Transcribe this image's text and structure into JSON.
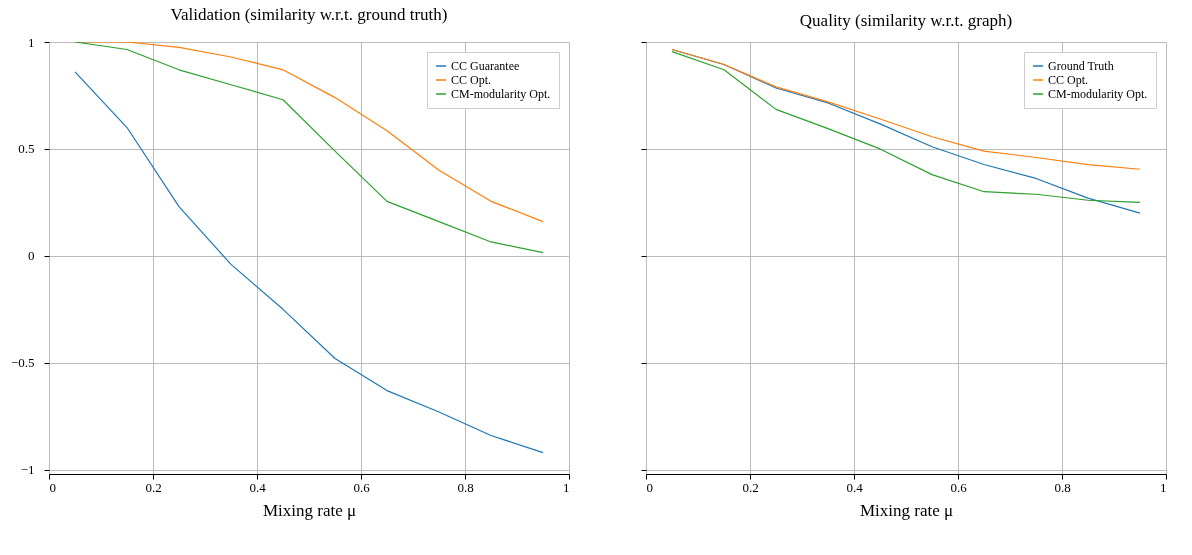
{
  "chart_data": [
    {
      "type": "line",
      "title": "Validation (similarity w.r.t. ground truth)",
      "xlabel": "Mixing rate μ",
      "x": [
        0.05,
        0.15,
        0.25,
        0.35,
        0.45,
        0.55,
        0.65,
        0.75,
        0.85,
        0.95
      ],
      "xlim": [
        0,
        1
      ],
      "xticks": [
        0,
        0.2,
        0.4,
        0.6,
        0.8,
        1
      ],
      "ylim": [
        -1.02,
        1
      ],
      "yticks": [
        {
          "value": -1,
          "label": "−1"
        },
        {
          "value": -0.5,
          "label": "−0.5"
        },
        0,
        0.5,
        1
      ],
      "grid": true,
      "legend": "top right",
      "series": [
        {
          "name": "CC Guarantee",
          "color": "#1f77b4",
          "values": [
            0.86,
            0.6,
            0.23,
            -0.04,
            -0.25,
            -0.48,
            -0.63,
            -0.73,
            -0.84,
            -0.92
          ]
        },
        {
          "name": "CC Opt.",
          "color": "#ff7f0e",
          "values": [
            1.0,
            1.0,
            0.975,
            0.93,
            0.87,
            0.74,
            0.585,
            0.4,
            0.255,
            0.16
          ]
        },
        {
          "name": "CM-modularity Opt.",
          "color": "#2ca02c",
          "values": [
            1.0,
            0.965,
            0.87,
            0.8,
            0.73,
            0.49,
            0.255,
            0.16,
            0.065,
            0.015
          ]
        }
      ]
    },
    {
      "type": "line",
      "title": "Quality (similarity w.r.t. graph)",
      "xlabel": "Mixing rate μ",
      "x": [
        0.05,
        0.15,
        0.25,
        0.35,
        0.45,
        0.55,
        0.65,
        0.75,
        0.85,
        0.95
      ],
      "xlim": [
        0,
        1
      ],
      "xticks": [
        0,
        0.2,
        0.4,
        0.6,
        0.8,
        1
      ],
      "ylim": [
        -1.02,
        1
      ],
      "yticks": [
        -1,
        -0.5,
        0,
        0.5,
        1
      ],
      "grid": true,
      "legend": "top right",
      "tick_labels": "x",
      "series": [
        {
          "name": "Ground Truth",
          "color": "#1f77b4",
          "values": [
            0.965,
            0.895,
            0.785,
            0.715,
            0.617,
            0.51,
            0.427,
            0.362,
            0.27,
            0.2
          ]
        },
        {
          "name": "CC Opt.",
          "color": "#ff7f0e",
          "values": [
            0.965,
            0.895,
            0.79,
            0.72,
            0.64,
            0.557,
            0.49,
            0.46,
            0.427,
            0.405
          ]
        },
        {
          "name": "CM-modularity Opt.",
          "color": "#2ca02c",
          "values": [
            0.955,
            0.87,
            0.685,
            0.595,
            0.5,
            0.38,
            0.3,
            0.288,
            0.26,
            0.25
          ]
        }
      ]
    }
  ]
}
